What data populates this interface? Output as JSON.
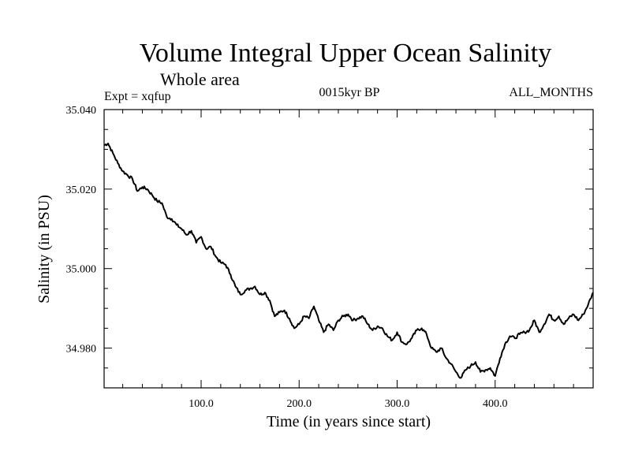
{
  "chart_data": {
    "type": "line",
    "title": "Volume Integral Upper Ocean Salinity",
    "subtitle": "Whole area",
    "experiment_label": "Expt = xqfup",
    "period_label": "0015kyr BP",
    "months_label": "ALL_MONTHS",
    "xlabel": "Time (in years since start)",
    "ylabel": "Salinity (in PSU)",
    "xlim": [
      1,
      500
    ],
    "ylim": [
      34.97,
      35.04
    ],
    "xticks": [
      100,
      200,
      300,
      400
    ],
    "xtick_labels": [
      "100.0",
      "200.0",
      "300.0",
      "400.0"
    ],
    "yticks": [
      34.98,
      35.0,
      35.02,
      35.04
    ],
    "ytick_labels": [
      "34.980",
      "35.000",
      "35.020",
      "35.040"
    ],
    "grid": false,
    "series": [
      {
        "name": "salinity",
        "x": [
          1,
          5,
          10,
          15,
          20,
          25,
          30,
          35,
          40,
          45,
          50,
          55,
          60,
          65,
          70,
          75,
          80,
          85,
          90,
          95,
          100,
          105,
          110,
          115,
          120,
          125,
          130,
          135,
          140,
          145,
          150,
          155,
          160,
          165,
          170,
          175,
          180,
          185,
          190,
          195,
          200,
          205,
          210,
          215,
          220,
          225,
          230,
          235,
          240,
          245,
          250,
          255,
          260,
          265,
          270,
          275,
          280,
          285,
          290,
          295,
          300,
          305,
          310,
          315,
          320,
          325,
          330,
          335,
          340,
          345,
          350,
          355,
          360,
          365,
          370,
          375,
          380,
          385,
          390,
          395,
          400,
          405,
          410,
          415,
          420,
          425,
          430,
          435,
          440,
          445,
          450,
          455,
          460,
          465,
          470,
          475,
          480,
          485,
          490,
          495,
          500
        ],
        "values": [
          35.031,
          35.0315,
          35.029,
          35.0265,
          35.0245,
          35.0235,
          35.0225,
          35.0195,
          35.0205,
          35.02,
          35.0185,
          35.017,
          35.0165,
          35.013,
          35.0125,
          35.011,
          35.01,
          35.0085,
          35.0095,
          35.0065,
          35.008,
          35.005,
          35.0055,
          35.003,
          35.0015,
          35.001,
          34.9985,
          34.9955,
          34.9935,
          34.9945,
          34.995,
          34.9955,
          34.9935,
          34.994,
          34.992,
          34.988,
          34.989,
          34.9895,
          34.9875,
          34.985,
          34.986,
          34.988,
          34.9875,
          34.9905,
          34.987,
          34.984,
          34.986,
          34.9845,
          34.987,
          34.988,
          34.9885,
          34.987,
          34.9875,
          34.988,
          34.986,
          34.9845,
          34.9855,
          34.985,
          34.983,
          34.982,
          34.984,
          34.9815,
          34.981,
          34.9825,
          34.9845,
          34.985,
          34.9835,
          34.98,
          34.979,
          34.98,
          34.9775,
          34.976,
          34.974,
          34.9725,
          34.9745,
          34.9755,
          34.9765,
          34.974,
          34.9745,
          34.975,
          34.973,
          34.9775,
          34.981,
          34.983,
          34.9825,
          34.9835,
          34.984,
          34.9845,
          34.987,
          34.984,
          34.986,
          34.9885,
          34.987,
          34.988,
          34.986,
          34.9875,
          34.9885,
          34.987,
          34.9885,
          34.991,
          34.994
        ]
      }
    ]
  }
}
